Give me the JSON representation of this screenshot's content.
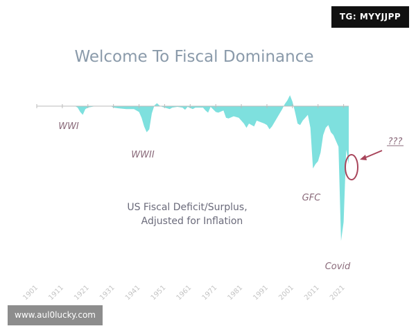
{
  "watermarks": {
    "telegram": "TG: MYYJJPP",
    "website": "www.aul0lucky.com"
  },
  "chart_data": {
    "type": "area",
    "title": "Welcome To Fiscal Dominance",
    "subtitle_lines": [
      "US Fiscal Deficit/Surplus,",
      "Adjusted for Inflation"
    ],
    "xlabel": "",
    "ylabel": "",
    "x_ticks": [
      "1901",
      "1911",
      "1921",
      "1931",
      "1941",
      "1951",
      "1961",
      "1971",
      "1981",
      "1991",
      "2001",
      "2011",
      "2021"
    ],
    "xlim": [
      1901,
      2023
    ],
    "ylim": [
      -1.0,
      0.1
    ],
    "y_unit": "relative (no y axis printed)",
    "grid": false,
    "colors": {
      "area": "#7ee0de",
      "axis": "#bbbbbb",
      "title": "#8a9aaa",
      "annotation": "#8a6a7a",
      "subtitle": "#6a6a7a",
      "arrow": "#a8445a"
    },
    "series": [
      {
        "points": [
          [
            1901,
            0
          ],
          [
            1916,
            0
          ],
          [
            1917,
            -0.01
          ],
          [
            1918,
            -0.04
          ],
          [
            1919,
            -0.06
          ],
          [
            1920,
            -0.02
          ],
          [
            1921,
            -0.01
          ],
          [
            1924,
            0
          ],
          [
            1930,
            0
          ],
          [
            1931,
            -0.01
          ],
          [
            1933,
            -0.015
          ],
          [
            1936,
            -0.02
          ],
          [
            1939,
            -0.02
          ],
          [
            1941,
            -0.04
          ],
          [
            1942,
            -0.08
          ],
          [
            1943,
            -0.14
          ],
          [
            1944,
            -0.18
          ],
          [
            1945,
            -0.16
          ],
          [
            1946,
            -0.05
          ],
          [
            1947,
            0.005
          ],
          [
            1948,
            0.02
          ],
          [
            1949,
            0.005
          ],
          [
            1950,
            -0.005
          ],
          [
            1952,
            -0.015
          ],
          [
            1953,
            -0.02
          ],
          [
            1954,
            -0.01
          ],
          [
            1956,
            -0.005
          ],
          [
            1958,
            -0.01
          ],
          [
            1959,
            -0.025
          ],
          [
            1960,
            -0.005
          ],
          [
            1962,
            -0.02
          ],
          [
            1963,
            -0.01
          ],
          [
            1966,
            -0.01
          ],
          [
            1967,
            -0.03
          ],
          [
            1968,
            -0.045
          ],
          [
            1969,
            -0.005
          ],
          [
            1971,
            -0.04
          ],
          [
            1972,
            -0.045
          ],
          [
            1974,
            -0.03
          ],
          [
            1975,
            -0.08
          ],
          [
            1976,
            -0.085
          ],
          [
            1978,
            -0.07
          ],
          [
            1980,
            -0.08
          ],
          [
            1982,
            -0.12
          ],
          [
            1983,
            -0.15
          ],
          [
            1984,
            -0.12
          ],
          [
            1985,
            -0.13
          ],
          [
            1986,
            -0.14
          ],
          [
            1987,
            -0.1
          ],
          [
            1990,
            -0.12
          ],
          [
            1991,
            -0.13
          ],
          [
            1992,
            -0.16
          ],
          [
            1993,
            -0.14
          ],
          [
            1995,
            -0.08
          ],
          [
            1997,
            -0.02
          ],
          [
            1998,
            0.015
          ],
          [
            1999,
            0.04
          ],
          [
            2000,
            0.075
          ],
          [
            2001,
            0.03
          ],
          [
            2002,
            -0.04
          ],
          [
            2003,
            -0.12
          ],
          [
            2004,
            -0.13
          ],
          [
            2005,
            -0.1
          ],
          [
            2006,
            -0.08
          ],
          [
            2007,
            -0.06
          ],
          [
            2008,
            -0.15
          ],
          [
            2009,
            -0.43
          ],
          [
            2010,
            -0.4
          ],
          [
            2011,
            -0.38
          ],
          [
            2012,
            -0.32
          ],
          [
            2013,
            -0.2
          ],
          [
            2014,
            -0.15
          ],
          [
            2015,
            -0.13
          ],
          [
            2016,
            -0.18
          ],
          [
            2017,
            -0.2
          ],
          [
            2018,
            -0.24
          ],
          [
            2019,
            -0.28
          ],
          [
            2020,
            -0.93
          ],
          [
            2021,
            -0.8
          ],
          [
            2022,
            -0.3
          ],
          [
            2023,
            -0.4
          ]
        ]
      }
    ],
    "annotations": [
      {
        "text": "WWI",
        "x": 1916
      },
      {
        "text": "WWII",
        "x": 1943
      },
      {
        "text": "GFC",
        "x": 2009
      },
      {
        "text": "Covid",
        "x": 2020
      },
      {
        "text": "???",
        "x": 2023,
        "highlight": "circled with arrow"
      }
    ]
  }
}
